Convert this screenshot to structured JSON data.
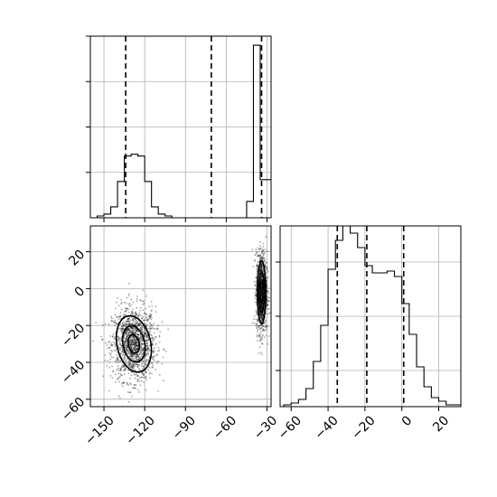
{
  "chart_data": [
    {
      "panel": "top-left",
      "type": "histogram",
      "xlim": [
        -160,
        -27
      ],
      "ylim": [
        0,
        1
      ],
      "bin_edges": [
        -155,
        -150,
        -145,
        -140,
        -135,
        -130,
        -125,
        -120,
        -115,
        -110,
        -105,
        -100,
        -95,
        -90,
        -85,
        -80,
        -75,
        -70,
        -65,
        -60,
        -55,
        -50,
        -45,
        -40,
        -35,
        -30,
        -25
      ],
      "counts": [
        0.01,
        0.02,
        0.06,
        0.2,
        0.34,
        0.35,
        0.34,
        0.2,
        0.06,
        0.02,
        0.01,
        0,
        0,
        0,
        0,
        0,
        0,
        0,
        0,
        0,
        0,
        0,
        0.09,
        0.95,
        0.21,
        0.21
      ],
      "quantile_lines": [
        -134,
        -71,
        -34
      ],
      "y_ticks": [
        0.25,
        0.5,
        0.75,
        1.0
      ],
      "grid": true
    },
    {
      "panel": "bottom-left",
      "type": "scatter-density",
      "xlim": [
        -160,
        -27
      ],
      "ylim": [
        -64,
        34
      ],
      "x_ticks": [
        -150,
        -120,
        -90,
        -60,
        -30
      ],
      "x_tick_labels": [
        "−150",
        "−120",
        "−90",
        "−60",
        "−30"
      ],
      "y_ticks": [
        -60,
        -40,
        -20,
        0,
        20
      ],
      "y_tick_labels": [
        "−60",
        "−40",
        "−20",
        "0",
        "20"
      ],
      "clusters": [
        {
          "center": [
            -128,
            -30
          ],
          "spread": [
            8,
            10
          ],
          "n": 1400
        },
        {
          "center": [
            -34,
            -2
          ],
          "spread": [
            2,
            11
          ],
          "n": 1100
        }
      ],
      "grid": true
    },
    {
      "panel": "bottom-right",
      "type": "histogram",
      "xlim": [
        -66,
        32
      ],
      "ylim": [
        0,
        1
      ],
      "bin_edges": [
        -64,
        -60,
        -56,
        -52,
        -48,
        -44,
        -40,
        -36,
        -32,
        -28,
        -24,
        -20,
        -16,
        -12,
        -8,
        -4,
        0,
        4,
        8,
        12,
        16,
        20,
        24,
        28,
        32
      ],
      "counts": [
        0.01,
        0.02,
        0.04,
        0.1,
        0.25,
        0.45,
        0.76,
        0.92,
        1.0,
        0.96,
        0.88,
        0.78,
        0.74,
        0.74,
        0.75,
        0.72,
        0.57,
        0.4,
        0.22,
        0.11,
        0.05,
        0.03,
        0.01,
        0.01
      ],
      "quantile_lines": [
        -35,
        -19,
        1
      ],
      "x_ticks": [
        -60,
        -40,
        -20,
        0,
        20
      ],
      "x_tick_labels": [
        "−60",
        "−40",
        "−20",
        "0",
        "20"
      ],
      "y_ticks": [
        0.2,
        0.5,
        0.8
      ],
      "grid": true
    }
  ]
}
